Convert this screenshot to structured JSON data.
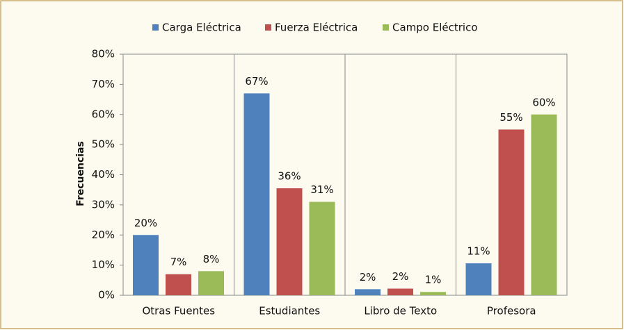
{
  "chart_data": {
    "type": "bar",
    "y_label": "Frecuencias",
    "categories": [
      "Otras Fuentes",
      "Estudiantes",
      "Libro de Texto",
      "Profesora"
    ],
    "series": [
      {
        "name": "Carga Eléctrica",
        "color": "#4f81bd",
        "values": [
          20,
          67,
          2,
          10.6
        ],
        "value_labels": [
          "20%",
          "67%",
          "2%",
          "11%"
        ]
      },
      {
        "name": "Fuerza Eléctrica",
        "color": "#c0504d",
        "values": [
          7,
          35.5,
          2.2,
          55
        ],
        "value_labels": [
          "7%",
          "36%",
          "2%",
          "55%"
        ]
      },
      {
        "name": "Campo Eléctrico",
        "color": "#9bbb59",
        "values": [
          8,
          31,
          1.1,
          60
        ],
        "value_labels": [
          "8%",
          "31%",
          "1%",
          "60%"
        ]
      }
    ],
    "ylim": [
      0,
      80
    ],
    "yticks": [
      {
        "value": 0,
        "label": "0%"
      },
      {
        "value": 10,
        "label": "10%"
      },
      {
        "value": 20,
        "label": "20%"
      },
      {
        "value": 30,
        "label": "30%"
      },
      {
        "value": 40,
        "label": "40%"
      },
      {
        "value": 50,
        "label": "50%"
      },
      {
        "value": 60,
        "label": "60%"
      },
      {
        "value": 70,
        "label": "70%"
      },
      {
        "value": 80,
        "label": "80%"
      }
    ],
    "legend": "top"
  }
}
